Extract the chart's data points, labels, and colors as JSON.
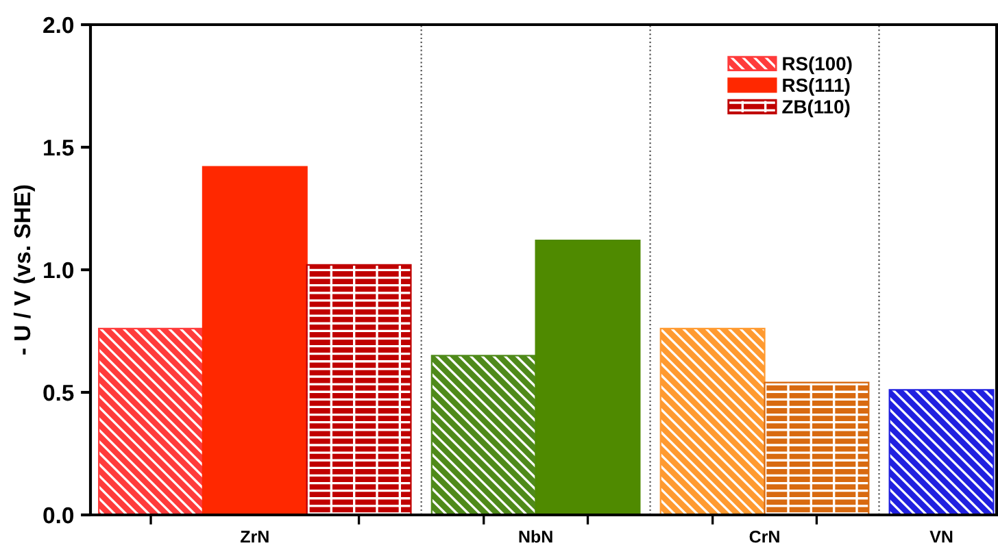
{
  "chart_data": {
    "type": "bar",
    "ylabel": "- U / V (vs. SHE)",
    "categories": [
      "ZrN",
      "NbN",
      "CrN",
      "VN"
    ],
    "series": [
      {
        "name": "RS(100)",
        "color": "#ff3b3b",
        "values": [
          0.76,
          0.65,
          0.76,
          0.51
        ],
        "colors": [
          "#ff3b3b",
          "#4f8a1a",
          "#ff9a30",
          "#2020e0"
        ]
      },
      {
        "name": "RS(111)",
        "color": "#ff2800",
        "values": [
          1.42,
          1.12,
          null,
          null
        ],
        "colors": [
          "#ff2800",
          "#4f8a00",
          null,
          null
        ]
      },
      {
        "name": "ZB(110)",
        "color": "#c00000",
        "values": [
          1.02,
          null,
          0.54,
          null
        ],
        "colors": [
          "#c00000",
          null,
          "#d86a10",
          null
        ]
      }
    ],
    "ylim": [
      0,
      2.0
    ],
    "yticks": [
      {
        "value": 0,
        "label": "0.0"
      },
      0.5,
      {
        "value": 1,
        "label": "1.0"
      },
      1.5,
      {
        "value": 2,
        "label": "2.0"
      }
    ],
    "grid": false,
    "legend": "top right"
  }
}
